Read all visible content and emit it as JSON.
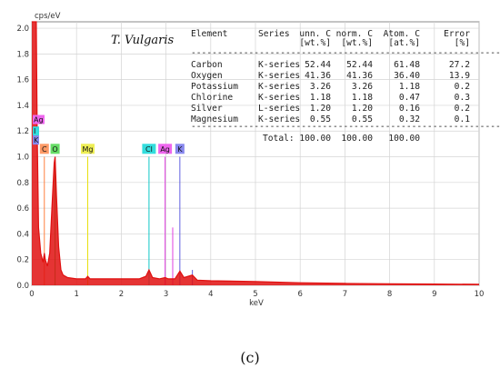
{
  "chart_data": {
    "type": "line",
    "sample_label": "T. Vulgaris",
    "ylabel": "cps/eV",
    "xlabel": "keV",
    "xlim": [
      0,
      10
    ],
    "ylim": [
      0,
      2.05
    ],
    "x_ticks": [
      "0",
      "1",
      "2",
      "3",
      "4",
      "5",
      "6",
      "7",
      "8",
      "9",
      "10"
    ],
    "y_ticks": [
      "0.0",
      "0.2",
      "0.4",
      "0.6",
      "0.8",
      "1.0",
      "1.2",
      "1.4",
      "1.6",
      "1.8",
      "2.0"
    ],
    "grid": true,
    "spectrum_color": "#e01010",
    "spectrum": [
      [
        0.0,
        2.05
      ],
      [
        0.05,
        2.05
      ],
      [
        0.1,
        2.05
      ],
      [
        0.12,
        1.2
      ],
      [
        0.15,
        0.45
      ],
      [
        0.2,
        0.25
      ],
      [
        0.25,
        0.18
      ],
      [
        0.28,
        0.25
      ],
      [
        0.3,
        0.2
      ],
      [
        0.35,
        0.15
      ],
      [
        0.4,
        0.25
      ],
      [
        0.45,
        0.6
      ],
      [
        0.5,
        0.95
      ],
      [
        0.52,
        1.0
      ],
      [
        0.55,
        0.7
      ],
      [
        0.6,
        0.3
      ],
      [
        0.65,
        0.12
      ],
      [
        0.7,
        0.08
      ],
      [
        0.8,
        0.06
      ],
      [
        1.0,
        0.05
      ],
      [
        1.2,
        0.05
      ],
      [
        1.25,
        0.07
      ],
      [
        1.3,
        0.05
      ],
      [
        1.5,
        0.05
      ],
      [
        2.0,
        0.05
      ],
      [
        2.4,
        0.05
      ],
      [
        2.55,
        0.07
      ],
      [
        2.62,
        0.12
      ],
      [
        2.7,
        0.06
      ],
      [
        2.85,
        0.05
      ],
      [
        2.98,
        0.06
      ],
      [
        3.05,
        0.05
      ],
      [
        3.2,
        0.05
      ],
      [
        3.31,
        0.11
      ],
      [
        3.4,
        0.06
      ],
      [
        3.59,
        0.08
      ],
      [
        3.7,
        0.04
      ],
      [
        4.0,
        0.035
      ],
      [
        5.0,
        0.03
      ],
      [
        6.0,
        0.02
      ],
      [
        7.0,
        0.015
      ],
      [
        8.0,
        0.012
      ],
      [
        9.0,
        0.01
      ],
      [
        10.0,
        0.008
      ]
    ],
    "peak_lines": [
      {
        "element": "C",
        "energy": 0.28,
        "height": 1.0,
        "color": "#ff8040",
        "label_color": "#ff9a66"
      },
      {
        "element": "O",
        "energy": 0.52,
        "height": 1.0,
        "color": "#30c040",
        "label_color": "#66dd66"
      },
      {
        "element": "Mg",
        "energy": 1.25,
        "height": 1.0,
        "color": "#e8e010",
        "label_color": "#eeee55"
      },
      {
        "element": "Cl",
        "energy": 2.62,
        "height": 1.0,
        "color": "#10c8c8",
        "label_color": "#33dddd"
      },
      {
        "element": "Ag",
        "energy": 2.98,
        "height": 1.0,
        "color": "#e040e0",
        "label_color": "#ee66ee"
      },
      {
        "element": "K",
        "energy": 3.31,
        "height": 1.0,
        "color": "#6060e0",
        "label_color": "#8888ee"
      },
      {
        "element": "Ag",
        "energy": 3.15,
        "height": 0.45,
        "color": "#e040e0",
        "label_color": ""
      },
      {
        "element": "K",
        "energy": 3.59,
        "height": 0.12,
        "color": "#6060e0",
        "label_color": ""
      }
    ],
    "side_labels": [
      {
        "element": "Ag",
        "y": 1.29,
        "color": "#ee66ee"
      },
      {
        "element": "I",
        "y": 1.2,
        "color": "#33dddd"
      },
      {
        "element": "K",
        "y": 1.13,
        "color": "#8888ee"
      }
    ]
  },
  "results_table": {
    "headers": [
      "Element",
      "Series",
      "unn. C",
      "norm. C",
      "Atom. C",
      "Error"
    ],
    "units": [
      "",
      "",
      "[wt.%]",
      "[wt.%]",
      "[at.%]",
      "[%]"
    ],
    "rows": [
      [
        "Carbon",
        "K-series",
        "52.44",
        "52.44",
        "61.48",
        "27.2"
      ],
      [
        "Oxygen",
        "K-series",
        "41.36",
        "41.36",
        "36.40",
        "13.9"
      ],
      [
        "Potassium",
        "K-series",
        "3.26",
        "3.26",
        "1.18",
        "0.2"
      ],
      [
        "Chlorine",
        "K-series",
        "1.18",
        "1.18",
        "0.47",
        "0.3"
      ],
      [
        "Silver",
        "L-series",
        "1.20",
        "1.20",
        "0.16",
        "0.2"
      ],
      [
        "Magnesium",
        "K-series",
        "0.55",
        "0.55",
        "0.32",
        "0.1"
      ]
    ],
    "total_label": "Total:",
    "totals": [
      "100.00",
      "100.00",
      "100.00"
    ]
  },
  "caption": "(c)"
}
